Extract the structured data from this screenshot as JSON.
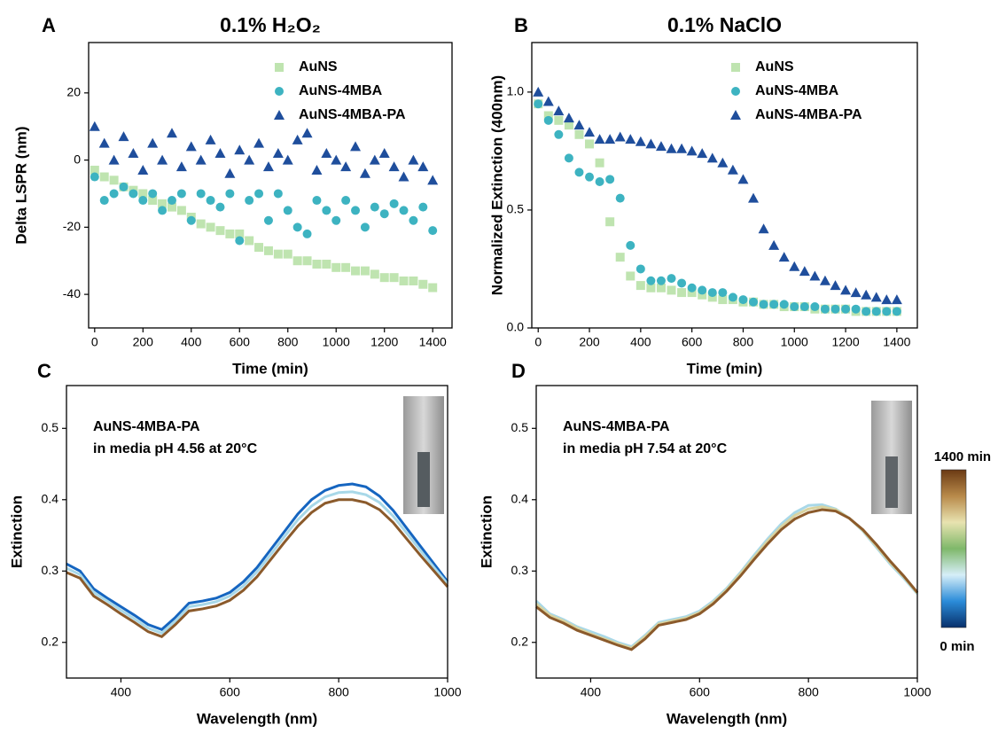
{
  "chart_data": [
    {
      "type": "scatter",
      "panel": "A",
      "title": "0.1% H₂O₂",
      "xlabel": "Time (min)",
      "ylabel": "Delta LSPR (nm)",
      "xlim": [
        -25,
        1480
      ],
      "xticks": [
        0,
        200,
        400,
        600,
        800,
        1000,
        1200,
        1400
      ],
      "ylim": [
        -50,
        35
      ],
      "yticks": [
        -40,
        -20,
        0,
        20
      ],
      "grid": false,
      "legend": "upper center",
      "x": [
        0,
        40,
        80,
        120,
        160,
        200,
        240,
        280,
        320,
        360,
        400,
        440,
        480,
        520,
        560,
        600,
        640,
        680,
        720,
        760,
        800,
        840,
        880,
        920,
        960,
        1000,
        1040,
        1080,
        1120,
        1160,
        1200,
        1240,
        1280,
        1320,
        1360,
        1400
      ],
      "series": [
        {
          "name": "AuNS",
          "color": "#bfe4b0",
          "marker": "square",
          "values": [
            -3,
            -5,
            -6,
            -8,
            -9,
            -10,
            -12,
            -13,
            -14,
            -15,
            -17,
            -19,
            -20,
            -21,
            -22,
            -22,
            -24,
            -26,
            -27,
            -28,
            -28,
            -30,
            -30,
            -31,
            -31,
            -32,
            -32,
            -33,
            -33,
            -34,
            -35,
            -35,
            -36,
            -36,
            -37,
            -38
          ]
        },
        {
          "name": "AuNS-4MBA",
          "color": "#3db3c1",
          "marker": "circle",
          "values": [
            -5,
            -12,
            -10,
            -8,
            -10,
            -12,
            -10,
            -15,
            -12,
            -10,
            -18,
            -10,
            -12,
            -14,
            -10,
            -24,
            -12,
            -10,
            -18,
            -10,
            -15,
            -20,
            -22,
            -12,
            -15,
            -18,
            -12,
            -15,
            -20,
            -14,
            -16,
            -13,
            -15,
            -18,
            -14,
            -21
          ]
        },
        {
          "name": "AuNS-4MBA-PA",
          "color": "#1f4e9c",
          "marker": "triangle",
          "values": [
            10,
            5,
            0,
            7,
            2,
            -3,
            5,
            0,
            8,
            -2,
            4,
            0,
            6,
            2,
            -4,
            3,
            0,
            5,
            -2,
            2,
            0,
            6,
            8,
            -3,
            2,
            0,
            -2,
            4,
            -4,
            0,
            2,
            -2,
            -5,
            0,
            -2,
            -6
          ]
        }
      ]
    },
    {
      "type": "scatter",
      "panel": "B",
      "title": "0.1% NaClO",
      "xlabel": "Time (min)",
      "ylabel": "Normalized Extinction (400nm)",
      "xlim": [
        -25,
        1480
      ],
      "xticks": [
        0,
        200,
        400,
        600,
        800,
        1000,
        1200,
        1400
      ],
      "ylim": [
        0,
        1.21
      ],
      "yticks": [
        {
          "value": 0,
          "label": "0.0"
        },
        0.5,
        {
          "value": 1,
          "label": "1.0"
        }
      ],
      "grid": false,
      "legend": "upper right",
      "x": [
        0,
        40,
        80,
        120,
        160,
        200,
        240,
        280,
        320,
        360,
        400,
        440,
        480,
        520,
        560,
        600,
        640,
        680,
        720,
        760,
        800,
        840,
        880,
        920,
        960,
        1000,
        1040,
        1080,
        1120,
        1160,
        1200,
        1240,
        1280,
        1320,
        1360,
        1400
      ],
      "series": [
        {
          "name": "AuNS",
          "color": "#bfe4b0",
          "marker": "square",
          "values": [
            0.95,
            0.9,
            0.88,
            0.86,
            0.82,
            0.78,
            0.7,
            0.45,
            0.3,
            0.22,
            0.18,
            0.17,
            0.17,
            0.16,
            0.15,
            0.15,
            0.14,
            0.13,
            0.12,
            0.12,
            0.11,
            0.11,
            0.1,
            0.1,
            0.09,
            0.09,
            0.09,
            0.08,
            0.08,
            0.08,
            0.08,
            0.07,
            0.07,
            0.07,
            0.07,
            0.07
          ]
        },
        {
          "name": "AuNS-4MBA",
          "color": "#3db3c1",
          "marker": "circle",
          "values": [
            0.95,
            0.88,
            0.82,
            0.72,
            0.66,
            0.64,
            0.62,
            0.63,
            0.55,
            0.35,
            0.25,
            0.2,
            0.2,
            0.21,
            0.19,
            0.17,
            0.16,
            0.15,
            0.15,
            0.13,
            0.12,
            0.11,
            0.1,
            0.1,
            0.1,
            0.09,
            0.09,
            0.09,
            0.08,
            0.08,
            0.08,
            0.08,
            0.07,
            0.07,
            0.07,
            0.07
          ]
        },
        {
          "name": "AuNS-4MBA-PA",
          "color": "#1f4e9c",
          "marker": "triangle",
          "values": [
            1.0,
            0.96,
            0.92,
            0.89,
            0.86,
            0.83,
            0.8,
            0.8,
            0.81,
            0.8,
            0.79,
            0.78,
            0.77,
            0.76,
            0.76,
            0.75,
            0.74,
            0.72,
            0.7,
            0.67,
            0.63,
            0.55,
            0.42,
            0.35,
            0.3,
            0.26,
            0.24,
            0.22,
            0.2,
            0.18,
            0.16,
            0.15,
            0.14,
            0.13,
            0.12,
            0.12
          ]
        }
      ]
    },
    {
      "type": "line",
      "panel": "C",
      "xlabel": "Wavelength (nm)",
      "ylabel": "Extinction",
      "annotations": [
        "AuNS-4MBA-PA",
        "in media pH 4.56 at 20°C"
      ],
      "xlim": [
        300,
        1000
      ],
      "xticks": [
        400,
        600,
        800,
        1000
      ],
      "ylim": [
        0.15,
        0.56
      ],
      "yticks": [
        0.2,
        0.3,
        0.4,
        0.5
      ],
      "grid": false,
      "x": [
        300,
        325,
        350,
        375,
        400,
        425,
        450,
        475,
        500,
        525,
        550,
        575,
        600,
        625,
        650,
        675,
        700,
        725,
        750,
        775,
        800,
        825,
        850,
        875,
        900,
        925,
        950,
        975,
        1000
      ],
      "series": [
        {
          "color": "#1565c0",
          "values": [
            0.31,
            0.3,
            0.275,
            0.262,
            0.25,
            0.238,
            0.225,
            0.218,
            0.235,
            0.255,
            0.258,
            0.262,
            0.27,
            0.285,
            0.305,
            0.33,
            0.355,
            0.38,
            0.4,
            0.413,
            0.42,
            0.422,
            0.418,
            0.405,
            0.385,
            0.36,
            0.335,
            0.31,
            0.285
          ]
        },
        {
          "color": "#a8d8e8",
          "values": [
            0.304,
            0.295,
            0.27,
            0.258,
            0.245,
            0.233,
            0.22,
            0.213,
            0.23,
            0.25,
            0.253,
            0.257,
            0.265,
            0.279,
            0.299,
            0.323,
            0.348,
            0.372,
            0.391,
            0.404,
            0.41,
            0.411,
            0.407,
            0.396,
            0.377,
            0.353,
            0.329,
            0.305,
            0.282
          ]
        },
        {
          "color": "#8b5a2b",
          "values": [
            0.298,
            0.29,
            0.265,
            0.253,
            0.24,
            0.228,
            0.215,
            0.208,
            0.225,
            0.244,
            0.247,
            0.251,
            0.259,
            0.273,
            0.292,
            0.316,
            0.34,
            0.363,
            0.382,
            0.395,
            0.4,
            0.4,
            0.396,
            0.386,
            0.368,
            0.345,
            0.322,
            0.3,
            0.278
          ]
        }
      ]
    },
    {
      "type": "line",
      "panel": "D",
      "xlabel": "Wavelength (nm)",
      "ylabel": "Extinction",
      "annotations": [
        "AuNS-4MBA-PA",
        "in media pH 7.54 at 20°C"
      ],
      "xlim": [
        300,
        1000
      ],
      "xticks": [
        400,
        600,
        800,
        1000
      ],
      "ylim": [
        0.15,
        0.56
      ],
      "yticks": [
        0.2,
        0.3,
        0.4,
        0.5
      ],
      "grid": false,
      "x": [
        300,
        325,
        350,
        375,
        400,
        425,
        450,
        475,
        500,
        525,
        550,
        575,
        600,
        625,
        650,
        675,
        700,
        725,
        750,
        775,
        800,
        825,
        850,
        875,
        900,
        925,
        950,
        975,
        1000
      ],
      "series": [
        {
          "color": "#a8d8e8",
          "values": [
            0.258,
            0.24,
            0.232,
            0.222,
            0.215,
            0.208,
            0.2,
            0.194,
            0.21,
            0.228,
            0.232,
            0.236,
            0.244,
            0.258,
            0.276,
            0.298,
            0.322,
            0.345,
            0.366,
            0.382,
            0.392,
            0.393,
            0.387,
            0.374,
            0.356,
            0.333,
            0.31,
            0.29,
            0.268
          ]
        },
        {
          "color": "#d9d3a0",
          "values": [
            0.254,
            0.238,
            0.23,
            0.22,
            0.212,
            0.205,
            0.198,
            0.192,
            0.208,
            0.226,
            0.23,
            0.234,
            0.242,
            0.256,
            0.274,
            0.296,
            0.319,
            0.342,
            0.362,
            0.378,
            0.387,
            0.39,
            0.386,
            0.374,
            0.357,
            0.335,
            0.312,
            0.292,
            0.269
          ]
        },
        {
          "color": "#8b5a2b",
          "values": [
            0.25,
            0.235,
            0.227,
            0.217,
            0.21,
            0.203,
            0.196,
            0.19,
            0.205,
            0.224,
            0.228,
            0.232,
            0.24,
            0.254,
            0.272,
            0.293,
            0.316,
            0.338,
            0.358,
            0.373,
            0.382,
            0.386,
            0.384,
            0.374,
            0.358,
            0.337,
            0.314,
            0.293,
            0.27
          ]
        }
      ],
      "colorbar": {
        "labels": [
          "1400 min",
          "0 min"
        ],
        "colors": [
          "#08306b",
          "#2b8cd9",
          "#d6eef8",
          "#7fb86a",
          "#e8e3b0",
          "#b88a4a",
          "#6b3a14"
        ]
      }
    }
  ]
}
